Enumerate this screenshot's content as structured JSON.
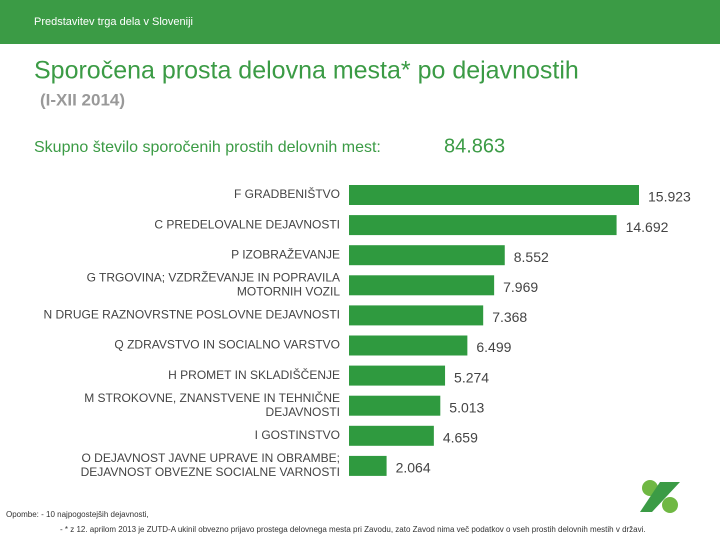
{
  "header": "Predstavitev trga dela v Sloveniji",
  "chart_data": {
    "type": "hbar",
    "title": "Sporočena prosta delovna mesta* po dejavnostih",
    "subtitle": "(I-XII 2014)",
    "total_text": "Skupno število sporočenih prostih delovnih mest:",
    "total": {
      "value": 84863,
      "label": "84.863"
    },
    "categories": [
      "F GRADBENIŠTVO",
      "C PREDELOVALNE DEJAVNOSTI",
      "P IZOBRAŽEVANJE",
      [
        "G TRGOVINA; VZDRŽEVANJE IN POPRAVILA",
        "MOTORNIH VOZIL"
      ],
      "N DRUGE RAZNOVRSTNE POSLOVNE DEJAVNOSTI",
      "Q ZDRAVSTVO IN SOCIALNO VARSTVO",
      "H PROMET IN SKLADIŠČENJE",
      [
        "M STROKOVNE, ZNANSTVENE IN TEHNIČNE",
        "DEJAVNOSTI"
      ],
      "I GOSTINSTVO",
      [
        "O DEJAVNOST JAVNE UPRAVE IN OBRAMBE;",
        "DEJAVNOST OBVEZNE SOCIALNE VARNOSTI"
      ]
    ],
    "values": [
      15923,
      14692,
      8552,
      7969,
      7368,
      6499,
      5274,
      5013,
      4659,
      2064
    ],
    "value_labels": [
      "15.923",
      "14.692",
      "8.552",
      "7.969",
      "7.368",
      "6.499",
      "5.274",
      "5.013",
      "4.659",
      "2.064"
    ],
    "color": "#2f9a3f"
  },
  "notes": [
    "Opombe: - 10 najpogostejših dejavnosti,",
    "- * z 12. aprilom 2013 je ZUTD-A ukinil obvezno prijavo prostega delovnega mesta pri Zavodu, zato Zavod nima več podatkov o vseh prostih delovnih mestih v državi."
  ]
}
